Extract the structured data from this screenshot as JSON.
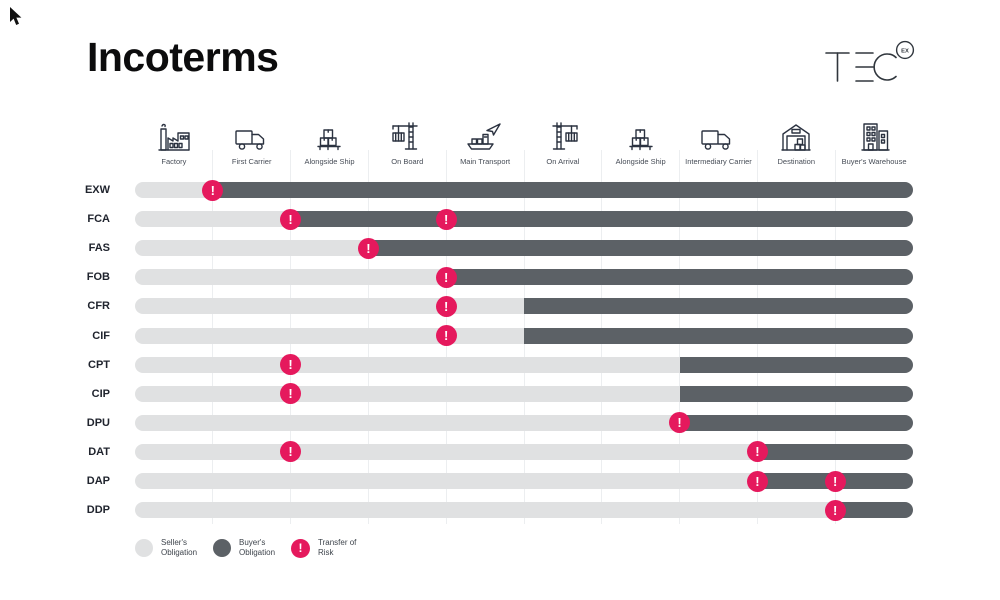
{
  "title": "Incoterms",
  "logo": {
    "text": "TEC",
    "badge": "EX"
  },
  "columns": [
    {
      "label": "Factory",
      "icon": "factory-icon"
    },
    {
      "label": "First Carrier",
      "icon": "truck-icon"
    },
    {
      "label": "Alongside Ship",
      "icon": "pallet-boxes-icon"
    },
    {
      "label": "On Board",
      "icon": "crane-loading-icon"
    },
    {
      "label": "Main Transport",
      "icon": "ship-plane-icon"
    },
    {
      "label": "On Arrival",
      "icon": "crane-unloading-icon"
    },
    {
      "label": "Alongside Ship",
      "icon": "pallet-boxes-icon"
    },
    {
      "label": "Intermediary Carrier",
      "icon": "truck-icon"
    },
    {
      "label": "Destination",
      "icon": "warehouse-icon"
    },
    {
      "label": "Buyer's Warehouse",
      "icon": "building-icon"
    }
  ],
  "legend": {
    "seller": "Seller's Obligation",
    "buyer": "Buyer's Obligation",
    "risk": "Transfer of Risk"
  },
  "colors": {
    "seller_obligation": "#e0e1e2",
    "buyer_obligation": "#5c6166",
    "transfer_of_risk": "#e5195d"
  },
  "chart_data": {
    "type": "bar",
    "subtype": "stacked-horizontal-timeline",
    "title": "Incoterms",
    "categories": [
      "Factory",
      "First Carrier",
      "Alongside Ship",
      "On Board",
      "Main Transport",
      "On Arrival",
      "Alongside Ship",
      "Intermediary Carrier",
      "Destination",
      "Buyer's Warehouse"
    ],
    "x_units": "column boundary index, 0 = start of Factory, 10 = end of Buyer's Warehouse",
    "xlim": [
      0,
      10
    ],
    "legend_position": "bottom-left",
    "grid": true,
    "rows": [
      {
        "term": "EXW",
        "seller_until": 1,
        "buyer_from": 1,
        "risk_markers": [
          1
        ]
      },
      {
        "term": "FCA",
        "seller_until": 2,
        "buyer_from": 2,
        "risk_markers": [
          2,
          4
        ]
      },
      {
        "term": "FAS",
        "seller_until": 3,
        "buyer_from": 3,
        "risk_markers": [
          3
        ]
      },
      {
        "term": "FOB",
        "seller_until": 4,
        "buyer_from": 4,
        "risk_markers": [
          4
        ]
      },
      {
        "term": "CFR",
        "seller_until": 5,
        "buyer_from": 5,
        "risk_markers": [
          4
        ]
      },
      {
        "term": "CIF",
        "seller_until": 5,
        "buyer_from": 5,
        "risk_markers": [
          4
        ]
      },
      {
        "term": "CPT",
        "seller_until": 7,
        "buyer_from": 7,
        "risk_markers": [
          2
        ]
      },
      {
        "term": "CIP",
        "seller_until": 7,
        "buyer_from": 7,
        "risk_markers": [
          2
        ]
      },
      {
        "term": "DPU",
        "seller_until": 7,
        "buyer_from": 7,
        "risk_markers": [
          7
        ]
      },
      {
        "term": "DAT",
        "seller_until": 8,
        "buyer_from": 8,
        "risk_markers": [
          2,
          8
        ]
      },
      {
        "term": "DAP",
        "seller_until": 8,
        "buyer_from": 8,
        "risk_markers": [
          8,
          9
        ]
      },
      {
        "term": "DDP",
        "seller_until": 9,
        "buyer_from": 9,
        "risk_markers": [
          9
        ]
      }
    ],
    "risk_marker_glyph": "!"
  }
}
